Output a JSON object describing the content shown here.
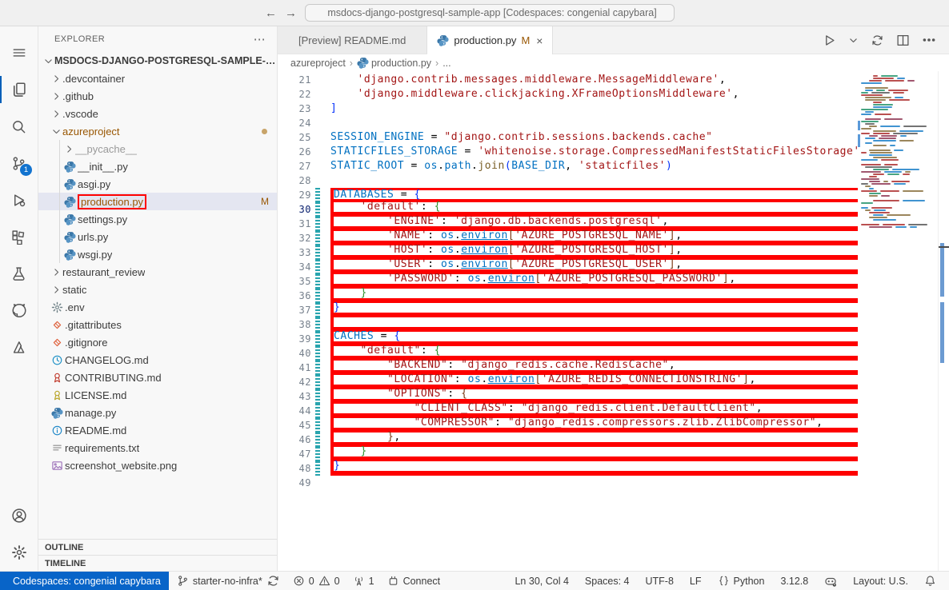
{
  "colors": {
    "annotation_red": "#fe0000",
    "remote_blue": "#0864c8",
    "modified": "#995703",
    "badge_blue": "#1273cf",
    "selection_bg": "#e4e6f1",
    "active_indicator": "#005fb8",
    "string": "#a31515",
    "identifier": "#0070c1",
    "function": "#795e26",
    "bracket1": "#0431fa",
    "bracket2": "#319331",
    "bracket3": "#7b3814",
    "gutter_added": "#28a4ae"
  },
  "title_bar": {
    "back": "←",
    "forward": "→",
    "search_value": "msdocs-django-postgresql-sample-app [Codespaces: congenial capybara]"
  },
  "activity_bar": {
    "top": [
      {
        "icon": "menu",
        "name": "menu"
      },
      {
        "icon": "files",
        "name": "explorer",
        "active": true
      },
      {
        "icon": "search",
        "name": "search"
      },
      {
        "icon": "scm",
        "name": "source-control",
        "badge": "1"
      },
      {
        "icon": "debug",
        "name": "run-and-debug"
      },
      {
        "icon": "extensions",
        "name": "extensions"
      },
      {
        "icon": "beaker",
        "name": "testing"
      },
      {
        "icon": "github",
        "name": "github"
      },
      {
        "icon": "azure",
        "name": "azure"
      }
    ],
    "bottom": [
      {
        "icon": "account",
        "name": "accounts"
      },
      {
        "icon": "gear",
        "name": "settings"
      }
    ]
  },
  "explorer": {
    "title": "EXPLORER",
    "more": "⋯",
    "outline": "OUTLINE",
    "timeline": "TIMELINE",
    "files": [
      {
        "label": "MSDOCS-DJANGO-POSTGRESQL-SAMPLE-APP...",
        "indent": 0,
        "chev": "down",
        "root": true
      },
      {
        "label": ".devcontainer",
        "indent": 1,
        "chev": "right"
      },
      {
        "label": ".github",
        "indent": 1,
        "chev": "right"
      },
      {
        "label": ".vscode",
        "indent": 1,
        "chev": "right"
      },
      {
        "label": "azureproject",
        "indent": 1,
        "chev": "down",
        "modified": true,
        "dot": true
      },
      {
        "label": "__pycache__",
        "indent": 2,
        "chev": "right",
        "muted": true
      },
      {
        "label": "__init__.py",
        "indent": 2,
        "icon": "python"
      },
      {
        "label": "asgi.py",
        "indent": 2,
        "icon": "python"
      },
      {
        "label": "production.py",
        "indent": 2,
        "icon": "python",
        "selected": true,
        "redbox": true,
        "badge": "M",
        "modified": true
      },
      {
        "label": "settings.py",
        "indent": 2,
        "icon": "python"
      },
      {
        "label": "urls.py",
        "indent": 2,
        "icon": "python"
      },
      {
        "label": "wsgi.py",
        "indent": 2,
        "icon": "python"
      },
      {
        "label": "restaurant_review",
        "indent": 1,
        "chev": "right"
      },
      {
        "label": "static",
        "indent": 1,
        "chev": "right"
      },
      {
        "label": ".env",
        "indent": 1,
        "icon": "gearfile"
      },
      {
        "label": ".gitattributes",
        "indent": 1,
        "icon": "git"
      },
      {
        "label": ".gitignore",
        "indent": 1,
        "icon": "git"
      },
      {
        "label": "CHANGELOG.md",
        "indent": 1,
        "icon": "clock"
      },
      {
        "label": "CONTRIBUTING.md",
        "indent": 1,
        "icon": "ribbonred"
      },
      {
        "label": "LICENSE.md",
        "indent": 1,
        "icon": "ribbonyellow"
      },
      {
        "label": "manage.py",
        "indent": 1,
        "icon": "python"
      },
      {
        "label": "README.md",
        "indent": 1,
        "icon": "info"
      },
      {
        "label": "requirements.txt",
        "indent": 1,
        "icon": "txt"
      },
      {
        "label": "screenshot_website.png",
        "indent": 1,
        "icon": "image"
      }
    ]
  },
  "tabs": [
    {
      "label": "[Preview] README.md",
      "active": false
    },
    {
      "label": "production.py",
      "icon": "python",
      "modified": "M",
      "close": "×",
      "active": true
    }
  ],
  "editor_actions": [
    {
      "icon": "run",
      "name": "run-python-file"
    },
    {
      "icon": "chevdown",
      "name": "run-dropdown"
    },
    {
      "icon": "sync",
      "name": "synchronize-changes"
    },
    {
      "icon": "split",
      "name": "split-editor"
    },
    {
      "icon": "more",
      "name": "more-actions"
    }
  ],
  "breadcrumb": [
    {
      "label": "azureproject"
    },
    {
      "label": "production.py",
      "icon": "python"
    },
    {
      "label": "..."
    }
  ],
  "code": {
    "active_line": 30,
    "lines": [
      {
        "n": 21,
        "t": [
          [
            "w",
            "    "
          ],
          [
            "s",
            "'django.contrib.messages.middleware.MessageMiddleware'"
          ],
          [
            "p",
            ","
          ]
        ]
      },
      {
        "n": 22,
        "t": [
          [
            "w",
            "    "
          ],
          [
            "s",
            "'django.middleware.clickjacking.XFrameOptionsMiddleware'"
          ],
          [
            "p",
            ","
          ]
        ]
      },
      {
        "n": 23,
        "t": [
          [
            "1",
            "]"
          ]
        ]
      },
      {
        "n": 24,
        "t": []
      },
      {
        "n": 25,
        "t": [
          [
            "i",
            "SESSION_ENGINE"
          ],
          [
            "p",
            " = "
          ],
          [
            "s",
            "\"django.contrib.sessions.backends.cache\""
          ]
        ]
      },
      {
        "n": 26,
        "t": [
          [
            "i",
            "STATICFILES_STORAGE"
          ],
          [
            "p",
            " = "
          ],
          [
            "s",
            "'whitenoise.storage.CompressedManifestStaticFilesStorage'"
          ]
        ]
      },
      {
        "n": 27,
        "t": [
          [
            "i",
            "STATIC_ROOT"
          ],
          [
            "p",
            " = "
          ],
          [
            "i",
            "os"
          ],
          [
            "p",
            "."
          ],
          [
            "i",
            "path"
          ],
          [
            "p",
            "."
          ],
          [
            "f",
            "join"
          ],
          [
            "1",
            "("
          ],
          [
            "i",
            "BASE_DIR"
          ],
          [
            "p",
            ", "
          ],
          [
            "s",
            "'staticfiles'"
          ],
          [
            "1",
            ")"
          ]
        ]
      },
      {
        "n": 28,
        "t": []
      },
      {
        "n": 29,
        "a": true,
        "t": [
          [
            "i",
            "DATABASES"
          ],
          [
            "p",
            " = "
          ],
          [
            "1",
            "{"
          ]
        ]
      },
      {
        "n": 30,
        "a": true,
        "t": [
          [
            "w",
            "    "
          ],
          [
            "s",
            "'default'"
          ],
          [
            "p",
            ": "
          ],
          [
            "2",
            "{"
          ]
        ]
      },
      {
        "n": 31,
        "a": true,
        "t": [
          [
            "w",
            "        "
          ],
          [
            "s",
            "'ENGINE'"
          ],
          [
            "p",
            ": "
          ],
          [
            "s",
            "'django.db.backends.postgresql'"
          ],
          [
            "p",
            ","
          ]
        ]
      },
      {
        "n": 32,
        "a": true,
        "t": [
          [
            "w",
            "        "
          ],
          [
            "s",
            "'NAME'"
          ],
          [
            "p",
            ": "
          ],
          [
            "i",
            "os"
          ],
          [
            "p",
            "."
          ],
          [
            "u",
            "environ"
          ],
          [
            "3",
            "["
          ],
          [
            "s",
            "'AZURE_POSTGRESQL_NAME'"
          ],
          [
            "3",
            "]"
          ],
          [
            "p",
            ","
          ]
        ]
      },
      {
        "n": 33,
        "a": true,
        "t": [
          [
            "w",
            "        "
          ],
          [
            "s",
            "'HOST'"
          ],
          [
            "p",
            ": "
          ],
          [
            "i",
            "os"
          ],
          [
            "p",
            "."
          ],
          [
            "u",
            "environ"
          ],
          [
            "3",
            "["
          ],
          [
            "s",
            "'AZURE_POSTGRESQL_HOST'"
          ],
          [
            "3",
            "]"
          ],
          [
            "p",
            ","
          ]
        ]
      },
      {
        "n": 34,
        "a": true,
        "t": [
          [
            "w",
            "        "
          ],
          [
            "s",
            "'USER'"
          ],
          [
            "p",
            ": "
          ],
          [
            "i",
            "os"
          ],
          [
            "p",
            "."
          ],
          [
            "u",
            "environ"
          ],
          [
            "3",
            "["
          ],
          [
            "s",
            "'AZURE_POSTGRESQL_USER'"
          ],
          [
            "3",
            "]"
          ],
          [
            "p",
            ","
          ]
        ]
      },
      {
        "n": 35,
        "a": true,
        "t": [
          [
            "w",
            "        "
          ],
          [
            "s",
            "'PASSWORD'"
          ],
          [
            "p",
            ": "
          ],
          [
            "i",
            "os"
          ],
          [
            "p",
            "."
          ],
          [
            "u",
            "environ"
          ],
          [
            "3",
            "["
          ],
          [
            "s",
            "'AZURE_POSTGRESQL_PASSWORD'"
          ],
          [
            "3",
            "]"
          ],
          [
            "p",
            ","
          ]
        ]
      },
      {
        "n": 36,
        "a": true,
        "t": [
          [
            "w",
            "    "
          ],
          [
            "2",
            "}"
          ]
        ]
      },
      {
        "n": 37,
        "a": true,
        "t": [
          [
            "1",
            "}"
          ]
        ]
      },
      {
        "n": 38,
        "a": true,
        "t": []
      },
      {
        "n": 39,
        "a": true,
        "t": [
          [
            "i",
            "CACHES"
          ],
          [
            "p",
            " = "
          ],
          [
            "1",
            "{"
          ]
        ]
      },
      {
        "n": 40,
        "a": true,
        "t": [
          [
            "w",
            "    "
          ],
          [
            "s",
            "\"default\""
          ],
          [
            "p",
            ": "
          ],
          [
            "2",
            "{"
          ]
        ]
      },
      {
        "n": 41,
        "a": true,
        "t": [
          [
            "w",
            "        "
          ],
          [
            "s",
            "\"BACKEND\""
          ],
          [
            "p",
            ": "
          ],
          [
            "s",
            "\"django_redis.cache.RedisCache\""
          ],
          [
            "p",
            ","
          ]
        ]
      },
      {
        "n": 42,
        "a": true,
        "t": [
          [
            "w",
            "        "
          ],
          [
            "s",
            "\"LOCATION\""
          ],
          [
            "p",
            ": "
          ],
          [
            "i",
            "os"
          ],
          [
            "p",
            "."
          ],
          [
            "u",
            "environ"
          ],
          [
            "3",
            "["
          ],
          [
            "s",
            "'AZURE_REDIS_CONNECTIONSTRING'"
          ],
          [
            "3",
            "]"
          ],
          [
            "p",
            ","
          ]
        ]
      },
      {
        "n": 43,
        "a": true,
        "t": [
          [
            "w",
            "        "
          ],
          [
            "s",
            "\"OPTIONS\""
          ],
          [
            "p",
            ": "
          ],
          [
            "3",
            "{"
          ]
        ]
      },
      {
        "n": 44,
        "a": true,
        "t": [
          [
            "w",
            "            "
          ],
          [
            "s",
            "\"CLIENT_CLASS\""
          ],
          [
            "p",
            ": "
          ],
          [
            "s",
            "\"django_redis.client.DefaultClient\""
          ],
          [
            "p",
            ","
          ]
        ]
      },
      {
        "n": 45,
        "a": true,
        "t": [
          [
            "w",
            "            "
          ],
          [
            "s",
            "\"COMPRESSOR\""
          ],
          [
            "p",
            ": "
          ],
          [
            "s",
            "\"django_redis.compressors.zlib.ZlibCompressor\""
          ],
          [
            "p",
            ","
          ]
        ]
      },
      {
        "n": 46,
        "a": true,
        "t": [
          [
            "w",
            "        "
          ],
          [
            "3",
            "}"
          ],
          [
            "p",
            ","
          ]
        ]
      },
      {
        "n": 47,
        "a": true,
        "t": [
          [
            "w",
            "    "
          ],
          [
            "2",
            "}"
          ]
        ]
      },
      {
        "n": 48,
        "a": true,
        "t": [
          [
            "1",
            "}"
          ]
        ]
      },
      {
        "n": 49,
        "t": []
      }
    ]
  },
  "status_bar": {
    "remote": {
      "label": "Codespaces: congenial capybara"
    },
    "left": [
      {
        "name": "branch-status",
        "parts": [
          [
            "icon",
            "branch"
          ],
          [
            "text",
            "starter-no-infra*"
          ],
          [
            "icon",
            "sync"
          ]
        ]
      },
      {
        "name": "problems",
        "parts": [
          [
            "icon",
            "error"
          ],
          [
            "text",
            "0"
          ],
          [
            "icon",
            "warning"
          ],
          [
            "text",
            "0"
          ]
        ]
      },
      {
        "name": "ports",
        "parts": [
          [
            "icon",
            "ports"
          ],
          [
            "text",
            "1"
          ]
        ]
      },
      {
        "name": "connect",
        "parts": [
          [
            "icon",
            "connect"
          ],
          [
            "text",
            "Connect"
          ]
        ]
      }
    ],
    "right": [
      {
        "name": "cursor-position",
        "parts": [
          [
            "text",
            "Ln 30, Col 4"
          ]
        ]
      },
      {
        "name": "indentation",
        "parts": [
          [
            "text",
            "Spaces: 4"
          ]
        ]
      },
      {
        "name": "encoding",
        "parts": [
          [
            "text",
            "UTF-8"
          ]
        ]
      },
      {
        "name": "eol",
        "parts": [
          [
            "text",
            "LF"
          ]
        ]
      },
      {
        "name": "language-mode",
        "parts": [
          [
            "icon",
            "braces"
          ],
          [
            "text",
            "Python"
          ]
        ]
      },
      {
        "name": "python-version",
        "parts": [
          [
            "text",
            "3.12.8"
          ]
        ]
      },
      {
        "name": "copilot-status",
        "parts": [
          [
            "icon",
            "copilotsmall"
          ]
        ]
      },
      {
        "name": "keyboard-layout",
        "parts": [
          [
            "text",
            "Layout: U.S."
          ]
        ]
      },
      {
        "name": "notifications",
        "parts": [
          [
            "icon",
            "bell"
          ]
        ]
      }
    ]
  }
}
